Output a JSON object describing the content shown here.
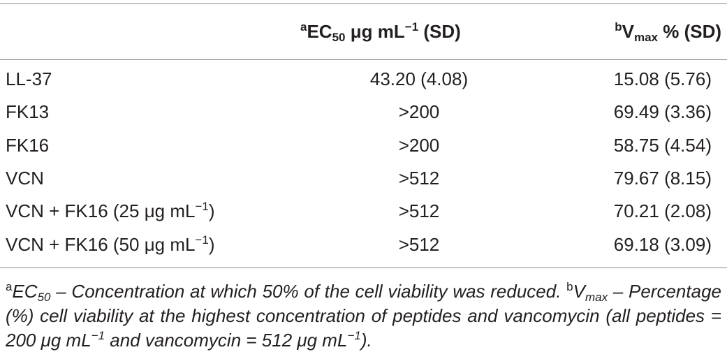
{
  "table": {
    "header": {
      "col2": [
        "a",
        "EC",
        "50",
        " μg mL",
        "−1",
        " (SD)"
      ],
      "col3": [
        "b",
        "V",
        "max",
        " % (SD)"
      ]
    },
    "rows": [
      [
        [
          "LL-37"
        ],
        "43.20 (4.08)",
        "15.08 (5.76)"
      ],
      [
        [
          "FK13"
        ],
        ">200",
        "69.49 (3.36)"
      ],
      [
        [
          "FK16"
        ],
        ">200",
        "58.75 (4.54)"
      ],
      [
        [
          "VCN"
        ],
        ">512",
        "79.67 (8.15)"
      ],
      [
        [
          "VCN + FK16 (25 μg mL",
          "−1",
          ")"
        ],
        ">512",
        "70.21 (2.08)"
      ],
      [
        [
          "VCN + FK16 (50 μg mL",
          "−1",
          ")"
        ],
        ">512",
        "69.18 (3.09)"
      ]
    ],
    "footnote": [
      "a",
      "EC",
      "50",
      " – Concentration at which 50% of the cell viability was reduced. ",
      "b",
      "V",
      "max",
      " – Percentage (%) cell viability at the highest concentration of peptides and vancomycin (all peptides = 200 μg mL",
      "−1",
      " and vancomycin = 512 μg mL",
      "−1",
      ")."
    ]
  }
}
